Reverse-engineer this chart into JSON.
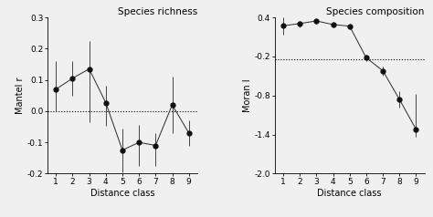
{
  "left": {
    "title": "Species richness",
    "xlabel": "Distance class",
    "ylabel": "Mantel r",
    "x": [
      1,
      2,
      3,
      4,
      5,
      6,
      7,
      8,
      9
    ],
    "y": [
      0.07,
      0.105,
      0.135,
      0.027,
      -0.125,
      -0.1,
      -0.11,
      0.02,
      -0.07
    ],
    "yerr_low": [
      0.07,
      0.055,
      0.17,
      0.075,
      0.07,
      0.075,
      0.065,
      0.09,
      0.04
    ],
    "yerr_high": [
      0.09,
      0.055,
      0.09,
      0.055,
      0.07,
      0.055,
      0.04,
      0.09,
      0.04
    ],
    "hline": 0.0,
    "ylim": [
      -0.2,
      0.3
    ],
    "yticks": [
      -0.2,
      -0.1,
      0.0,
      0.1,
      0.2,
      0.3
    ],
    "ytick_labels": [
      "-0.2",
      "-0.1",
      "0.0",
      "0.1",
      "0.2",
      "0.3"
    ]
  },
  "right": {
    "title": "Species composition",
    "xlabel": "Distance class",
    "ylabel": "Moran I",
    "x": [
      1,
      2,
      3,
      4,
      5,
      6,
      7,
      8,
      9
    ],
    "y": [
      0.27,
      0.305,
      0.345,
      0.29,
      0.265,
      -0.22,
      -0.42,
      -0.86,
      -1.32
    ],
    "yerr_low": [
      0.13,
      0.065,
      0.04,
      0.04,
      0.04,
      0.05,
      0.07,
      0.12,
      0.12
    ],
    "yerr_high": [
      0.13,
      0.04,
      0.04,
      0.04,
      0.04,
      0.05,
      0.07,
      0.12,
      0.55
    ],
    "hline": -0.25,
    "ylim": [
      -2.0,
      0.4
    ],
    "yticks": [
      -2.0,
      -1.4,
      -0.8,
      -0.2,
      0.4
    ],
    "ytick_labels": [
      "-2.0",
      "-1.4",
      "-0.8",
      "-0.2",
      "0.4"
    ]
  },
  "line_color": "#2a2a2a",
  "marker_color": "#111111",
  "marker_size": 3.5,
  "errorbar_color": "#444444",
  "background_color": "#f0f0f0",
  "fontsize_title": 7.5,
  "fontsize_label": 7,
  "fontsize_tick": 6.5
}
